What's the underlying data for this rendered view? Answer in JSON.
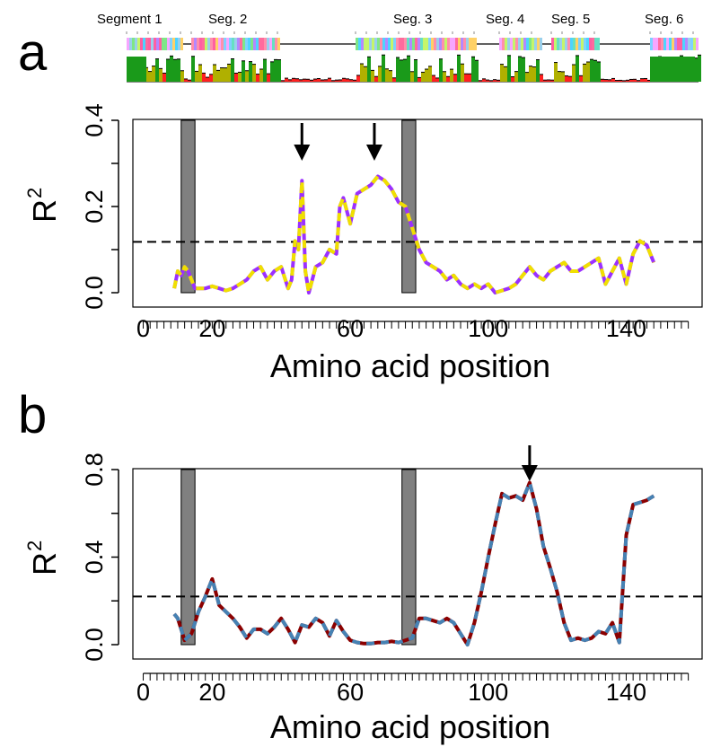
{
  "segments": [
    "Segment 1",
    "Seg. 2",
    "Seg. 3",
    "Seg. 4",
    "Seg. 5",
    "Seg. 6"
  ],
  "colors": {
    "a_line_1": "#9b30ff",
    "a_line_2": "#f0e000",
    "b_line_1": "#8b0000",
    "b_line_2": "#4682b4",
    "shade": "#808080",
    "conservation_high": "#1a9a1a",
    "conservation_mid": "#b0b000",
    "conservation_low": "#ff2020"
  },
  "chart_data": [
    {
      "type": "line",
      "panel": "a",
      "xlabel": "Amino acid position",
      "ylabel": "R",
      "ylabel_sup": "2",
      "xlim": [
        -3,
        162
      ],
      "ylim": [
        0,
        0.4
      ],
      "xticks": [
        0,
        20,
        60,
        100,
        140
      ],
      "yticks": [
        0.0,
        0.2,
        0.4
      ],
      "ytick_labels": [
        "0.0",
        "0.2",
        "0.4"
      ],
      "threshold": 0.118,
      "shaded_regions": [
        [
          11,
          15
        ],
        [
          75,
          79
        ]
      ],
      "arrows_at": [
        46,
        67
      ],
      "series": [
        {
          "style": "dashed two-tone",
          "x": [
            9,
            10,
            11,
            12,
            13,
            14,
            15,
            16,
            18,
            20,
            22,
            24,
            26,
            28,
            30,
            32,
            34,
            36,
            38,
            40,
            42,
            43,
            44,
            45,
            46,
            47,
            48,
            50,
            52,
            54,
            56,
            57,
            58,
            60,
            62,
            64,
            66,
            68,
            70,
            72,
            74,
            76,
            78,
            80,
            82,
            84,
            86,
            88,
            90,
            92,
            94,
            96,
            98,
            100,
            102,
            104,
            106,
            108,
            110,
            112,
            114,
            116,
            118,
            120,
            122,
            124,
            126,
            128,
            130,
            132,
            134,
            136,
            138,
            140,
            142,
            144,
            146,
            148
          ],
          "y": [
            0.01,
            0.05,
            0.04,
            0.06,
            0.05,
            0.03,
            0.01,
            0.01,
            0.01,
            0.015,
            0.01,
            0.005,
            0.01,
            0.02,
            0.03,
            0.05,
            0.06,
            0.03,
            0.05,
            0.06,
            0.01,
            0.03,
            0.12,
            0.1,
            0.26,
            0.05,
            0.0,
            0.06,
            0.07,
            0.1,
            0.09,
            0.2,
            0.22,
            0.16,
            0.23,
            0.24,
            0.25,
            0.27,
            0.26,
            0.24,
            0.21,
            0.2,
            0.15,
            0.1,
            0.07,
            0.06,
            0.05,
            0.03,
            0.04,
            0.02,
            0.01,
            0.02,
            0.01,
            0.02,
            0.0,
            0.005,
            0.01,
            0.02,
            0.04,
            0.06,
            0.04,
            0.03,
            0.05,
            0.06,
            0.07,
            0.05,
            0.05,
            0.06,
            0.07,
            0.08,
            0.02,
            0.05,
            0.08,
            0.02,
            0.09,
            0.12,
            0.11,
            0.07
          ]
        }
      ]
    },
    {
      "type": "line",
      "panel": "b",
      "xlabel": "Amino acid position",
      "ylabel": "R",
      "ylabel_sup": "2",
      "xlim": [
        -3,
        162
      ],
      "ylim": [
        0,
        0.8
      ],
      "xticks": [
        0,
        20,
        60,
        100,
        140
      ],
      "yticks": [
        0.0,
        0.4,
        0.8
      ],
      "ytick_labels": [
        "0.0",
        "0.4",
        "0.8"
      ],
      "threshold": 0.22,
      "shaded_regions": [
        [
          11,
          15
        ],
        [
          75,
          79
        ]
      ],
      "arrows_at": [
        112
      ],
      "series": [
        {
          "style": "dashed two-tone",
          "x": [
            9,
            10,
            12,
            14,
            16,
            18,
            20,
            22,
            24,
            26,
            28,
            30,
            32,
            34,
            36,
            38,
            40,
            42,
            44,
            46,
            48,
            50,
            52,
            54,
            56,
            58,
            60,
            62,
            64,
            66,
            68,
            70,
            72,
            74,
            76,
            78,
            80,
            82,
            84,
            86,
            88,
            90,
            92,
            94,
            96,
            98,
            100,
            102,
            104,
            106,
            108,
            110,
            112,
            114,
            116,
            118,
            120,
            122,
            124,
            126,
            128,
            130,
            132,
            134,
            136,
            138,
            140,
            142,
            144,
            146,
            148
          ],
          "y": [
            0.14,
            0.12,
            0.02,
            0.05,
            0.15,
            0.22,
            0.3,
            0.18,
            0.15,
            0.12,
            0.08,
            0.03,
            0.07,
            0.07,
            0.05,
            0.08,
            0.12,
            0.07,
            0.01,
            0.09,
            0.08,
            0.12,
            0.1,
            0.04,
            0.11,
            0.06,
            0.02,
            0.01,
            0.005,
            0.005,
            0.01,
            0.01,
            0.015,
            0.01,
            0.02,
            0.03,
            0.12,
            0.12,
            0.11,
            0.1,
            0.12,
            0.1,
            0.05,
            0.0,
            0.1,
            0.24,
            0.4,
            0.55,
            0.69,
            0.67,
            0.68,
            0.66,
            0.74,
            0.62,
            0.45,
            0.35,
            0.24,
            0.1,
            0.02,
            0.03,
            0.02,
            0.03,
            0.06,
            0.05,
            0.1,
            0.01,
            0.5,
            0.64,
            0.65,
            0.66,
            0.68
          ]
        }
      ]
    }
  ]
}
